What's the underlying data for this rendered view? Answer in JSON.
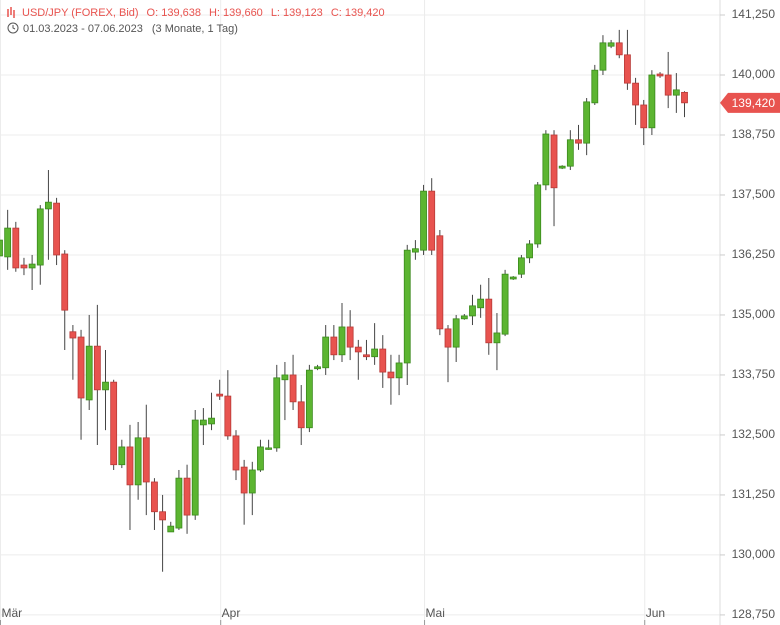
{
  "chart_data": {
    "type": "candlestick",
    "title": "USD/JPY (FOREX, Bid)",
    "ohlc_labels": [
      "O: 139,638",
      "H: 139,660",
      "L: 139,123",
      "C: 139,420"
    ],
    "subtitle": "01.03.2023 - 07.06.2023",
    "period": "(3 Monate, 1 Tag)",
    "last_price": {
      "value": 139.42,
      "label": "139,420"
    },
    "categories": [
      "Mär",
      null,
      null,
      null,
      null,
      null,
      null,
      null,
      null,
      null,
      null,
      null,
      null,
      null,
      null,
      null,
      null,
      null,
      null,
      null,
      null,
      null,
      null,
      null,
      null,
      null,
      null,
      "Apr",
      null,
      null,
      null,
      null,
      null,
      null,
      null,
      null,
      null,
      null,
      null,
      null,
      null,
      null,
      null,
      null,
      null,
      null,
      null,
      null,
      null,
      null,
      null,
      null,
      "Mai",
      null,
      null,
      null,
      null,
      null,
      null,
      null,
      null,
      null,
      null,
      null,
      null,
      null,
      null,
      null,
      null,
      null,
      null,
      null,
      null,
      null,
      null,
      null,
      null,
      null,
      null,
      "Jun",
      null,
      null,
      null,
      null,
      null
    ],
    "open": [
      136.23,
      136.21,
      136.81,
      136.04,
      135.98,
      136.04,
      137.21,
      137.33,
      136.27,
      134.65,
      134.54,
      133.23,
      134.35,
      133.44,
      133.6,
      131.88,
      132.25,
      131.46,
      132.44,
      131.52,
      130.9,
      130.48,
      130.56,
      131.6,
      130.83,
      132.71,
      132.73,
      133.35,
      133.31,
      132.48,
      131.83,
      131.29,
      131.77,
      132.21,
      132.23,
      133.65,
      133.75,
      133.19,
      132.65,
      133.88,
      133.9,
      134.54,
      134.17,
      134.75,
      134.33,
      134.17,
      134.13,
      134.29,
      133.81,
      133.69,
      134.0,
      136.31,
      136.35,
      137.58,
      136.65,
      134.71,
      134.33,
      134.92,
      134.98,
      135.15,
      135.33,
      134.42,
      134.6,
      135.75,
      135.85,
      136.19,
      136.48,
      137.71,
      138.75,
      138.06,
      138.1,
      138.65,
      138.58,
      139.42,
      140.1,
      140.6,
      140.67,
      140.42,
      139.83,
      139.375,
      138.9,
      140.02,
      140.0,
      139.58,
      139.638
    ],
    "high": [
      136.73,
      137.19,
      136.94,
      136.19,
      136.25,
      137.29,
      138.02,
      137.44,
      136.35,
      134.79,
      134.69,
      135.0,
      135.21,
      134.27,
      133.65,
      132.4,
      132.71,
      132.77,
      133.13,
      131.6,
      131.25,
      130.69,
      131.77,
      131.88,
      133.02,
      133.06,
      133.38,
      133.65,
      133.85,
      132.6,
      131.98,
      131.94,
      132.4,
      132.4,
      133.96,
      134.02,
      134.17,
      133.54,
      133.96,
      133.96,
      134.79,
      134.79,
      135.25,
      135.1,
      134.48,
      134.48,
      134.83,
      134.58,
      134.17,
      134.17,
      136.46,
      136.56,
      137.71,
      137.85,
      136.77,
      134.79,
      135.0,
      135.02,
      135.42,
      135.63,
      135.77,
      135.04,
      135.94,
      135.81,
      136.25,
      136.56,
      137.77,
      138.85,
      138.85,
      138.12,
      138.85,
      138.96,
      139.52,
      140.21,
      140.83,
      140.73,
      140.94,
      140.94,
      139.94,
      139.48,
      140.1,
      140.06,
      140.48,
      140.04,
      139.66
    ],
    "low": [
      135.35,
      135.94,
      135.9,
      135.83,
      135.52,
      135.63,
      136.15,
      136.04,
      134.27,
      133.65,
      132.4,
      133.02,
      132.29,
      132.6,
      131.77,
      131.81,
      130.52,
      131.15,
      130.83,
      130.52,
      129.65,
      130.48,
      130.52,
      130.44,
      130.73,
      132.29,
      132.6,
      133.23,
      132.4,
      131.56,
      130.63,
      130.83,
      131.73,
      132.19,
      132.15,
      132.81,
      133.02,
      132.29,
      132.56,
      133.85,
      133.75,
      134.06,
      134.02,
      134.06,
      133.65,
      134.06,
      133.96,
      133.48,
      133.13,
      133.33,
      133.54,
      136.15,
      136.25,
      136.25,
      134.58,
      133.6,
      134.02,
      134.9,
      134.79,
      134.94,
      134.17,
      133.85,
      134.56,
      135.73,
      135.77,
      136.08,
      136.4,
      137.6,
      136.85,
      138.04,
      138.02,
      138.44,
      138.33,
      139.375,
      140.0,
      140.56,
      140.35,
      139.69,
      138.96,
      138.54,
      138.75,
      139.94,
      139.31,
      139.21,
      139.123
    ],
    "close": [
      136.56,
      136.81,
      135.98,
      135.98,
      136.06,
      137.21,
      137.35,
      136.25,
      135.1,
      134.52,
      133.27,
      134.35,
      133.44,
      133.6,
      131.88,
      132.25,
      131.46,
      132.44,
      131.52,
      130.9,
      130.73,
      130.6,
      131.6,
      130.83,
      132.81,
      132.81,
      132.85,
      133.31,
      132.48,
      131.77,
      131.29,
      131.77,
      132.25,
      132.23,
      133.69,
      133.75,
      133.19,
      132.65,
      133.85,
      133.92,
      134.54,
      134.17,
      134.75,
      134.33,
      134.23,
      134.13,
      134.29,
      133.81,
      133.69,
      134.0,
      136.35,
      136.38,
      137.58,
      136.35,
      134.71,
      134.33,
      134.92,
      134.98,
      135.19,
      135.33,
      134.42,
      134.625,
      135.85,
      135.79,
      136.19,
      136.48,
      137.71,
      138.77,
      137.65,
      138.1,
      138.65,
      138.58,
      139.44,
      140.1,
      140.67,
      140.67,
      140.42,
      139.83,
      139.375,
      138.9,
      140.0,
      139.98,
      139.58,
      139.69,
      139.42
    ],
    "up_color": "#5cb531",
    "down_color": "#e8534f",
    "ylim": [
      128.54,
      141.5625
    ],
    "yticks": [
      {
        "value": 128.75,
        "label": "128,750"
      },
      {
        "value": 130,
        "label": "130,000"
      },
      {
        "value": 131.25,
        "label": "131,250"
      },
      {
        "value": 132.5,
        "label": "132,500"
      },
      {
        "value": 133.75,
        "label": "133,750"
      },
      {
        "value": 135,
        "label": "135,000"
      },
      {
        "value": 136.25,
        "label": "136,250"
      },
      {
        "value": 137.5,
        "label": "137,500"
      },
      {
        "value": 138.75,
        "label": "138,750"
      },
      {
        "value": 140,
        "label": "140,000"
      },
      {
        "value": 141.25,
        "label": "141,250"
      }
    ],
    "grid": true
  }
}
